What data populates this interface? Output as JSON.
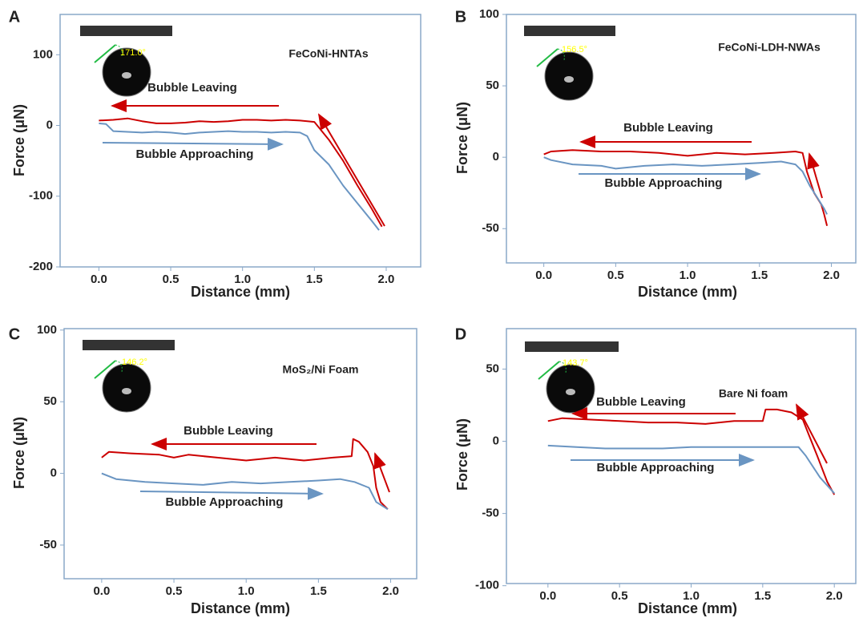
{
  "chart_data": [
    {
      "type": "line",
      "panel": "A",
      "title": "FeCoNi-HNTAs",
      "contact_angle": "171.0°",
      "x_label": "Distance (mm)",
      "y_label": "Force (μN)",
      "xlim": [
        -0.27,
        2.24
      ],
      "ylim": [
        -200,
        157
      ],
      "xticks": [
        {
          "value": 0,
          "label": "0.0"
        },
        {
          "value": 0.5,
          "label": "0.5"
        },
        {
          "value": 1,
          "label": "1.0"
        },
        {
          "value": 1.5,
          "label": "1.5"
        },
        {
          "value": 2,
          "label": "2.0"
        }
      ],
      "yticks": [
        -200,
        -100,
        0,
        100
      ],
      "grid": false,
      "series": [
        {
          "name": "Bubble Leaving",
          "color": "#cc0000",
          "x": [
            0,
            0.1,
            0.2,
            0.3,
            0.4,
            0.5,
            0.6,
            0.7,
            0.8,
            0.9,
            1.0,
            1.1,
            1.2,
            1.3,
            1.4,
            1.5,
            1.6,
            1.7,
            1.8,
            1.9,
            1.97
          ],
          "values": [
            7,
            8,
            10,
            6,
            3,
            3,
            4,
            6,
            5,
            6,
            8,
            8,
            7,
            8,
            7,
            5,
            -20,
            -50,
            -85,
            -118,
            -143
          ]
        },
        {
          "name": "Bubble Approaching",
          "color": "#6a95c2",
          "x": [
            0,
            0.05,
            0.1,
            0.2,
            0.3,
            0.4,
            0.5,
            0.6,
            0.7,
            0.8,
            0.9,
            1.0,
            1.1,
            1.2,
            1.3,
            1.4,
            1.45,
            1.5,
            1.6,
            1.7,
            1.8,
            1.9,
            1.95
          ],
          "values": [
            3,
            2,
            -8,
            -9,
            -10,
            -9,
            -10,
            -12,
            -10,
            -9,
            -8,
            -9,
            -9,
            -10,
            -9,
            -10,
            -15,
            -35,
            -55,
            -85,
            -110,
            -135,
            -148
          ]
        }
      ]
    },
    {
      "type": "line",
      "panel": "B",
      "title": "FeCoNi-LDH-NWAs",
      "contact_angle": "156.5°",
      "x_label": "Distance (mm)",
      "y_label": "Force (μN)",
      "xlim": [
        -0.26,
        2.17
      ],
      "ylim": [
        -74,
        100
      ],
      "xticks": [
        {
          "value": 0,
          "label": "0.0"
        },
        {
          "value": 0.5,
          "label": "0.5"
        },
        {
          "value": 1,
          "label": "1.0"
        },
        {
          "value": 1.5,
          "label": "1.5"
        },
        {
          "value": 2,
          "label": "2.0"
        }
      ],
      "yticks": [
        -50,
        0,
        50,
        100
      ],
      "grid": false,
      "series": [
        {
          "name": "Bubble Leaving",
          "color": "#cc0000",
          "x": [
            0,
            0.05,
            0.2,
            0.4,
            0.6,
            0.8,
            1.0,
            1.2,
            1.4,
            1.6,
            1.75,
            1.8,
            1.83,
            1.88,
            1.93,
            1.95,
            1.97
          ],
          "values": [
            2,
            4,
            5,
            4,
            4,
            3,
            1,
            3,
            2,
            3,
            4,
            3,
            -10,
            -25,
            -33,
            -40,
            -48
          ]
        },
        {
          "name": "Bubble Approaching",
          "color": "#6a95c2",
          "x": [
            0,
            0.05,
            0.2,
            0.4,
            0.5,
            0.7,
            0.9,
            1.1,
            1.3,
            1.5,
            1.65,
            1.75,
            1.8,
            1.85,
            1.9,
            1.95,
            1.97
          ],
          "values": [
            0,
            -2,
            -5,
            -6,
            -8,
            -6,
            -5,
            -6,
            -5,
            -4,
            -3,
            -5,
            -10,
            -20,
            -28,
            -36,
            -40
          ]
        }
      ]
    },
    {
      "type": "line",
      "panel": "C",
      "title": "MoS₂/Ni Foam",
      "contact_angle": "146.2°",
      "x_label": "Distance (mm)",
      "y_label": "Force (μN)",
      "xlim": [
        -0.26,
        2.18
      ],
      "ylim": [
        -73.5,
        101
      ],
      "xticks": [
        {
          "value": 0,
          "label": "0.0"
        },
        {
          "value": 0.5,
          "label": "0.5"
        },
        {
          "value": 1,
          "label": "1.0"
        },
        {
          "value": 1.5,
          "label": "1.5"
        },
        {
          "value": 2,
          "label": "2.0"
        }
      ],
      "yticks": [
        -50,
        0,
        50,
        100
      ],
      "grid": false,
      "series": [
        {
          "name": "Bubble Leaving",
          "color": "#cc0000",
          "x": [
            0,
            0.05,
            0.2,
            0.4,
            0.5,
            0.6,
            0.8,
            1.0,
            1.2,
            1.4,
            1.6,
            1.73,
            1.74,
            1.78,
            1.84,
            1.88,
            1.9,
            1.93,
            1.98
          ],
          "values": [
            11,
            15,
            14,
            13,
            11,
            13,
            11,
            9,
            11,
            9,
            11,
            12,
            24,
            22,
            15,
            5,
            -10,
            -20,
            -25
          ]
        },
        {
          "name": "Bubble Approaching",
          "color": "#6a95c2",
          "x": [
            0,
            0.1,
            0.3,
            0.5,
            0.7,
            0.9,
            1.1,
            1.3,
            1.5,
            1.65,
            1.75,
            1.85,
            1.9,
            1.98
          ],
          "values": [
            0,
            -4,
            -6,
            -7,
            -8,
            -6,
            -7,
            -6,
            -5,
            -4,
            -6,
            -10,
            -20,
            -25
          ]
        }
      ]
    },
    {
      "type": "line",
      "panel": "D",
      "title": "Bare Ni foam",
      "contact_angle": "143.7°",
      "x_label": "Distance (mm)",
      "y_label": "Force (μN)",
      "xlim": [
        -0.29,
        2.15
      ],
      "ylim": [
        -98.5,
        78
      ],
      "xticks": [
        {
          "value": 0,
          "label": "0.0"
        },
        {
          "value": 0.5,
          "label": "0.5"
        },
        {
          "value": 1,
          "label": "1.0"
        },
        {
          "value": 1.5,
          "label": "1.5"
        },
        {
          "value": 2,
          "label": "2.0"
        }
      ],
      "yticks": [
        -100,
        -50,
        0,
        50
      ],
      "grid": false,
      "series": [
        {
          "name": "Bubble Leaving",
          "color": "#cc0000",
          "x": [
            0,
            0.1,
            0.3,
            0.5,
            0.7,
            0.9,
            1.1,
            1.3,
            1.5,
            1.52,
            1.6,
            1.7,
            1.78,
            1.82,
            1.88,
            1.95,
            2.0
          ],
          "values": [
            14,
            16,
            15,
            14,
            13,
            13,
            12,
            14,
            14,
            22,
            22,
            20,
            15,
            5,
            -10,
            -28,
            -37
          ]
        },
        {
          "name": "Bubble Approaching",
          "color": "#6a95c2",
          "x": [
            0,
            0.2,
            0.4,
            0.6,
            0.8,
            1.0,
            1.2,
            1.4,
            1.6,
            1.75,
            1.8,
            1.9,
            2.0
          ],
          "values": [
            -3,
            -4,
            -5,
            -5,
            -5,
            -4,
            -4,
            -4,
            -4,
            -4,
            -10,
            -25,
            -36
          ]
        }
      ]
    }
  ]
}
